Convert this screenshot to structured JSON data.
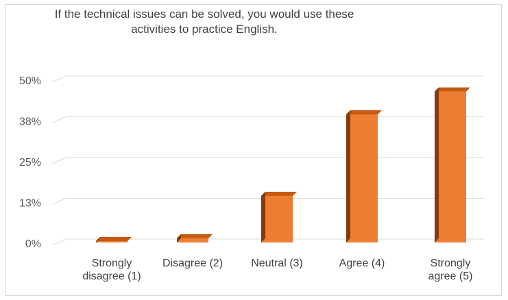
{
  "chart_data": {
    "type": "bar",
    "title": "If the technical issues can be solved, you would use these\nactivities to practice English.",
    "categories": [
      "Strongly\ndisagree (1)",
      "Disagree (2)",
      "Neutral (3)",
      "Agree (4)",
      "Strongly\nagree (5)"
    ],
    "values": [
      0.5,
      1.5,
      14.5,
      39.5,
      46.5
    ],
    "value_unit": "%",
    "ylim": [
      0,
      50
    ],
    "yticks": [
      {
        "value": 0,
        "label": "0%"
      },
      {
        "value": 12.5,
        "label": "13%"
      },
      {
        "value": 25,
        "label": "25%"
      },
      {
        "value": 37.5,
        "label": "38%"
      },
      {
        "value": 50,
        "label": "50%"
      }
    ],
    "xlabel": "",
    "ylabel": "",
    "grid": true,
    "legend": "none",
    "style": "3d-column"
  },
  "colors": {
    "bar_front": "#ed7d31",
    "bar_top": "#c55a11",
    "bar_side": "#843c0c",
    "grid": "#d9d9d9"
  }
}
